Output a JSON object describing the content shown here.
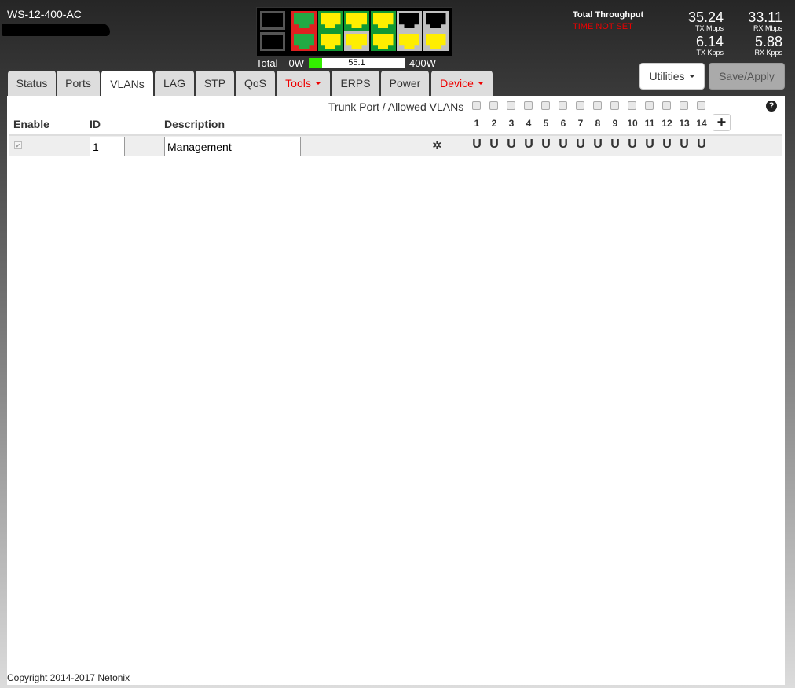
{
  "device": {
    "title": "WS-12-400-AC"
  },
  "port_panel": {
    "sfp_count": 2,
    "top_row": [
      {
        "border": "#e02020",
        "jack": "#22aa44"
      },
      {
        "border": "#119933",
        "jack": "#ffee00"
      },
      {
        "border": "#119933",
        "jack": "#ffee00"
      },
      {
        "border": "#119933",
        "jack": "#ffee00"
      },
      {
        "border": "#c0c0c0",
        "jack": "#000000"
      },
      {
        "border": "#c0c0c0",
        "jack": "#000000"
      }
    ],
    "bottom_row": [
      {
        "border": "#e02020",
        "jack": "#22aa44"
      },
      {
        "border": "#119933",
        "jack": "#ffee00"
      },
      {
        "border": "#c0c0c0",
        "jack": "#ffee00"
      },
      {
        "border": "#119933",
        "jack": "#ffee00"
      },
      {
        "border": "#c0c0c0",
        "jack": "#ffee00"
      },
      {
        "border": "#c0c0c0",
        "jack": "#ffee00"
      }
    ]
  },
  "power": {
    "label": "Total",
    "min": "0W",
    "max": "400W",
    "value": "55.1",
    "fraction": 0.1378
  },
  "throughput": {
    "title": "Total Throughput",
    "time_status": "TIME NOT SET",
    "tx_mbps": "35.24",
    "tx_mbps_label": "TX Mbps",
    "rx_mbps": "33.11",
    "rx_mbps_label": "RX Mbps",
    "tx_kpps": "6.14",
    "tx_kpps_label": "TX Kpps",
    "rx_kpps": "5.88",
    "rx_kpps_label": "RX Kpps"
  },
  "tabs": [
    {
      "label": "Status"
    },
    {
      "label": "Ports"
    },
    {
      "label": "VLANs",
      "active": true
    },
    {
      "label": "LAG"
    },
    {
      "label": "STP"
    },
    {
      "label": "QoS"
    },
    {
      "label": "Tools",
      "dropdown": true
    },
    {
      "label": "ERPS"
    },
    {
      "label": "Power"
    },
    {
      "label": "Device",
      "dropdown": true
    }
  ],
  "buttons": {
    "utilities": "Utilities",
    "save": "Save/Apply"
  },
  "vlan_table": {
    "trunk_label": "Trunk Port / Allowed VLANs",
    "headers": {
      "enable": "Enable",
      "id": "ID",
      "description": "Description"
    },
    "ports": [
      "1",
      "2",
      "3",
      "4",
      "5",
      "6",
      "7",
      "8",
      "9",
      "10",
      "11",
      "12",
      "13",
      "14"
    ],
    "rows": [
      {
        "enabled": true,
        "id": "1",
        "description": "Management",
        "membership": [
          "U",
          "U",
          "U",
          "U",
          "U",
          "U",
          "U",
          "U",
          "U",
          "U",
          "U",
          "U",
          "U",
          "U"
        ]
      }
    ]
  },
  "footer": {
    "copyright": "Copyright 2014-2017 Netonix"
  }
}
